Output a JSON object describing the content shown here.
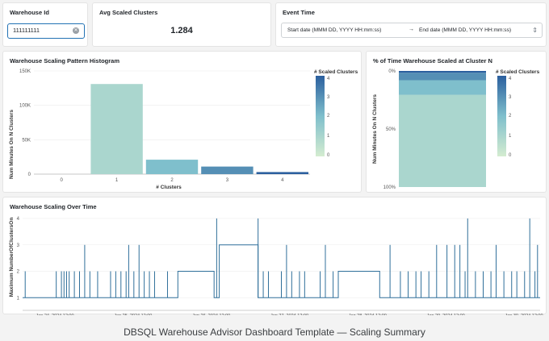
{
  "warehouse_filter": {
    "title": "Warehouse Id",
    "value": "111111111"
  },
  "avg_card": {
    "title": "Avg Scaled Clusters",
    "value": "1.284"
  },
  "event_time": {
    "title": "Event Time",
    "start_placeholder": "Start date (MMM DD, YYYY HH:mm:ss)",
    "arrow": "→",
    "end_placeholder": "End date (MMM DD, YYYY HH:mm:ss)"
  },
  "colors": {
    "scale_low": "#c8e6c9",
    "scale_mid": "#79b8c9",
    "scale_high": "#2b5f9e"
  },
  "charts": {
    "histogram": {
      "title": "Warehouse Scaling Pattern Histogram",
      "legend_title": "# Scaled Clusters",
      "legend_ticks": [
        "4",
        "3",
        "2",
        "1",
        "0"
      ]
    },
    "percent": {
      "title": "% of Time Warehouse Scaled at Cluster N",
      "legend_title": "# Scaled Clusters",
      "legend_ticks": [
        "4",
        "3",
        "2",
        "1",
        "0"
      ]
    },
    "timeline": {
      "title": "Warehouse Scaling Over Time"
    }
  },
  "chart_data": [
    {
      "type": "bar",
      "title": "Warehouse Scaling Pattern Histogram",
      "xlabel": "# Clusters",
      "ylabel": "Num Minutes On N Clusters",
      "categories": [
        "0",
        "1",
        "2",
        "3",
        "4"
      ],
      "values": [
        0,
        131000,
        21000,
        11000,
        3000
      ],
      "y_ticks": [
        0,
        50000,
        100000,
        150000
      ],
      "y_tick_labels": [
        "0",
        "50K",
        "100K",
        "150K"
      ],
      "ylim": [
        0,
        150000
      ],
      "legend": {
        "title": "# Scaled Clusters",
        "placement": "right"
      }
    },
    {
      "type": "bar",
      "title": "% of Time Warehouse Scaled at Cluster N",
      "ylabel": "Num Minutes On N Clusters",
      "stacked": true,
      "series": [
        {
          "clusters": 1,
          "percent": 79.5
        },
        {
          "clusters": 2,
          "percent": 12.5
        },
        {
          "clusters": 3,
          "percent": 6.5
        },
        {
          "clusters": 4,
          "percent": 1.5
        }
      ],
      "y_tick_labels": [
        "0%",
        "50%",
        "100%"
      ],
      "ylim": [
        0,
        100
      ],
      "legend": {
        "title": "# Scaled Clusters",
        "placement": "right"
      }
    },
    {
      "type": "line",
      "title": "Warehouse Scaling Over Time",
      "ylabel": "Maximum NumberOfClustersOn",
      "ylim": [
        1,
        4
      ],
      "y_ticks": [
        1,
        2,
        3,
        4
      ],
      "x_tick_labels": [
        "Jan 24, 2024 12:00",
        "Jan 25, 2024 12:00",
        "Jan 26, 2024 12:00",
        "Jan 27, 2024 12:00",
        "Jan 28, 2024 12:00",
        "Jan 29, 2024 12:00",
        "Jan 30, 2024 12:00"
      ],
      "baseline": 1,
      "plateaus": [
        {
          "start": 0.3,
          "end": 0.37,
          "value": 2
        },
        {
          "start": 0.38,
          "end": 0.455,
          "value": 3
        },
        {
          "start": 0.61,
          "end": 0.69,
          "value": 2
        }
      ],
      "spikes": [
        [
          0.005,
          2
        ],
        [
          0.065,
          2
        ],
        [
          0.075,
          2
        ],
        [
          0.08,
          2
        ],
        [
          0.085,
          2
        ],
        [
          0.09,
          2
        ],
        [
          0.1,
          2
        ],
        [
          0.11,
          2
        ],
        [
          0.12,
          3
        ],
        [
          0.13,
          2
        ],
        [
          0.145,
          2
        ],
        [
          0.17,
          2
        ],
        [
          0.18,
          2
        ],
        [
          0.19,
          2
        ],
        [
          0.2,
          2
        ],
        [
          0.205,
          3
        ],
        [
          0.215,
          2
        ],
        [
          0.225,
          3
        ],
        [
          0.235,
          2
        ],
        [
          0.245,
          2
        ],
        [
          0.255,
          2
        ],
        [
          0.28,
          2
        ],
        [
          0.375,
          4
        ],
        [
          0.455,
          4
        ],
        [
          0.465,
          2
        ],
        [
          0.475,
          2
        ],
        [
          0.5,
          2
        ],
        [
          0.51,
          3
        ],
        [
          0.52,
          2
        ],
        [
          0.535,
          2
        ],
        [
          0.545,
          2
        ],
        [
          0.575,
          2
        ],
        [
          0.585,
          3
        ],
        [
          0.6,
          2
        ],
        [
          0.71,
          3
        ],
        [
          0.73,
          2
        ],
        [
          0.745,
          2
        ],
        [
          0.76,
          2
        ],
        [
          0.77,
          2
        ],
        [
          0.785,
          2
        ],
        [
          0.8,
          3
        ],
        [
          0.82,
          3
        ],
        [
          0.835,
          3
        ],
        [
          0.845,
          3
        ],
        [
          0.855,
          2
        ],
        [
          0.86,
          4
        ],
        [
          0.875,
          2
        ],
        [
          0.89,
          2
        ],
        [
          0.905,
          2
        ],
        [
          0.915,
          3
        ],
        [
          0.93,
          2
        ],
        [
          0.945,
          2
        ],
        [
          0.955,
          2
        ],
        [
          0.97,
          2
        ],
        [
          0.98,
          4
        ],
        [
          0.99,
          2
        ],
        [
          0.995,
          3
        ]
      ]
    }
  ],
  "caption": "DBSQL Warehouse Advisor Dashboard Template — Scaling Summary"
}
